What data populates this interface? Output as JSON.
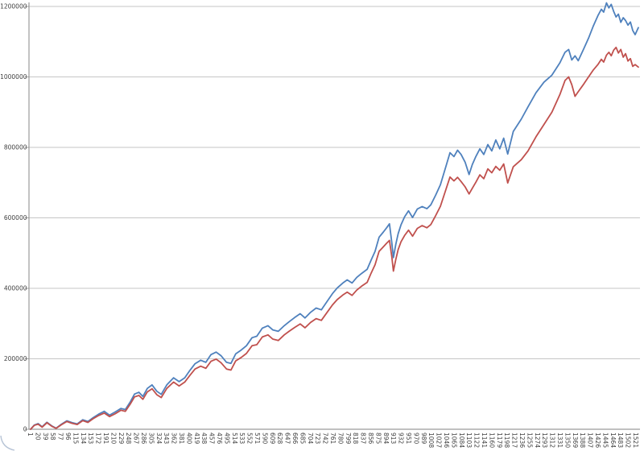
{
  "colors": {
    "background": "#FFFFFF",
    "gridline": "#C6C6C6",
    "axis": "#9B9B9B",
    "tick_text": "#3F3F3F",
    "series_blue": "#4F81BD",
    "series_red": "#C0504D",
    "corner_artifact": "#B7C4D6"
  },
  "chart_data": {
    "type": "line",
    "title": "",
    "xlabel": "",
    "ylabel": "",
    "legend": "none",
    "grid": "horizontal",
    "y_axis": {
      "min": 0,
      "max": 1200000,
      "gridline_step": 200000,
      "tick_labels": [
        "0",
        "200000",
        "400000",
        "600000",
        "800000",
        "1000000",
        "1200000"
      ]
    },
    "x_axis": {
      "min": 1,
      "max": 1530,
      "tick_start": 1,
      "tick_step": 19,
      "tick_labels": [
        "1",
        "20",
        "39",
        "58",
        "77",
        "96",
        "115",
        "134",
        "153",
        "172",
        "191",
        "210",
        "229",
        "248",
        "267",
        "286",
        "305",
        "324",
        "343",
        "362",
        "381",
        "400",
        "419",
        "438",
        "457",
        "476",
        "495",
        "514",
        "533",
        "552",
        "571",
        "590",
        "609",
        "628",
        "647",
        "666",
        "685",
        "704",
        "723",
        "742",
        "761",
        "780",
        "799",
        "818",
        "837",
        "856",
        "875",
        "894",
        "913",
        "932",
        "951",
        "970",
        "989",
        "1008",
        "1027",
        "1046",
        "1065",
        "1084",
        "1103",
        "1122",
        "1141",
        "1160",
        "1179",
        "1198",
        "1217",
        "1236",
        "1255",
        "1274",
        "1293",
        "1312",
        "1331",
        "1350",
        "1369",
        "1388",
        "1407",
        "1426",
        "1445",
        "1464",
        "1483",
        "1502",
        "1521"
      ]
    },
    "x": [
      1,
      10,
      20,
      30,
      42,
      55,
      65,
      78,
      92,
      105,
      118,
      132,
      145,
      158,
      172,
      186,
      199,
      213,
      228,
      239,
      251,
      262,
      273,
      283,
      294,
      306,
      318,
      329,
      343,
      360,
      374,
      388,
      401,
      414,
      428,
      441,
      454,
      467,
      479,
      493,
      504,
      516,
      530,
      543,
      557,
      569,
      583,
      597,
      609,
      623,
      638,
      650,
      664,
      678,
      690,
      704,
      718,
      731,
      745,
      759,
      771,
      785,
      796,
      808,
      820,
      832,
      846,
      856,
      866,
      876,
      887,
      895,
      902,
      908,
      912,
      918,
      924,
      931,
      940,
      950,
      960,
      972,
      984,
      996,
      1006,
      1018,
      1030,
      1042,
      1054,
      1064,
      1073,
      1082,
      1092,
      1102,
      1110,
      1119,
      1129,
      1139,
      1149,
      1159,
      1169,
      1179,
      1189,
      1199,
      1213,
      1233,
      1250,
      1270,
      1290,
      1310,
      1330,
      1343,
      1352,
      1360,
      1368,
      1376,
      1390,
      1402,
      1414,
      1426,
      1434,
      1440,
      1447,
      1453,
      1459,
      1465,
      1471,
      1477,
      1483,
      1489,
      1495,
      1501,
      1507,
      1513,
      1519,
      1527
    ],
    "series": [
      {
        "name": "blue-line",
        "color": "#4F81BD",
        "values": [
          0,
          12000,
          16000,
          7000,
          20000,
          9000,
          3000,
          14000,
          24000,
          19000,
          15000,
          27000,
          22000,
          33000,
          43000,
          51000,
          40000,
          49000,
          59000,
          56000,
          77000,
          100000,
          105000,
          93000,
          116000,
          126000,
          108000,
          99000,
          126000,
          146000,
          135000,
          146000,
          167000,
          186000,
          196000,
          190000,
          212000,
          219000,
          209000,
          190000,
          187000,
          214000,
          225000,
          237000,
          260000,
          264000,
          287000,
          294000,
          282000,
          278000,
          294000,
          305000,
          317000,
          328000,
          316000,
          332000,
          344000,
          339000,
          362000,
          385000,
          401000,
          415000,
          424000,
          415000,
          431000,
          442000,
          454000,
          480000,
          505000,
          545000,
          560000,
          572000,
          583000,
          530000,
          487000,
          525000,
          555000,
          580000,
          603000,
          620000,
          601000,
          625000,
          632000,
          626000,
          637000,
          664000,
          694000,
          739000,
          785000,
          774000,
          792000,
          780000,
          758000,
          723000,
          751000,
          774000,
          796000,
          780000,
          808000,
          790000,
          821000,
          796000,
          826000,
          781000,
          845000,
          880000,
          915000,
          955000,
          985000,
          1005000,
          1040000,
          1070000,
          1078000,
          1048000,
          1060000,
          1046000,
          1080000,
          1110000,
          1145000,
          1175000,
          1192000,
          1184000,
          1210000,
          1196000,
          1206000,
          1186000,
          1170000,
          1178000,
          1155000,
          1168000,
          1160000,
          1147000,
          1156000,
          1132000,
          1120000,
          1140000
        ]
      },
      {
        "name": "red-line",
        "color": "#C0504D",
        "values": [
          0,
          11000,
          14500,
          6000,
          18500,
          8000,
          2500,
          12500,
          22000,
          17000,
          13500,
          24500,
          19500,
          30000,
          39000,
          46000,
          36000,
          44000,
          54000,
          51000,
          71000,
          92000,
          96000,
          85000,
          106000,
          115000,
          98000,
          90000,
          116000,
          134000,
          123000,
          134000,
          153000,
          171000,
          179000,
          173000,
          193000,
          199000,
          189000,
          171000,
          168000,
          194000,
          204000,
          215000,
          237000,
          240000,
          262000,
          268000,
          256000,
          252000,
          268000,
          278000,
          289000,
          299000,
          288000,
          303000,
          314000,
          309000,
          331000,
          353000,
          368000,
          381000,
          389000,
          380000,
          395000,
          406000,
          417000,
          443000,
          467000,
          505000,
          518000,
          528000,
          536000,
          490000,
          449000,
          482000,
          510000,
          532000,
          550000,
          565000,
          548000,
          570000,
          578000,
          572000,
          581000,
          606000,
          633000,
          674000,
          716000,
          705000,
          715000,
          703000,
          688000,
          668000,
          684000,
          701000,
          722000,
          711000,
          739000,
          728000,
          746000,
          735000,
          753000,
          699000,
          745000,
          765000,
          790000,
          830000,
          865000,
          900000,
          950000,
          990000,
          1000000,
          978000,
          945000,
          958000,
          980000,
          1000000,
          1020000,
          1036000,
          1050000,
          1042000,
          1062000,
          1070000,
          1060000,
          1076000,
          1084000,
          1068000,
          1078000,
          1056000,
          1066000,
          1045000,
          1052000,
          1030000,
          1035000,
          1028000
        ]
      }
    ]
  }
}
